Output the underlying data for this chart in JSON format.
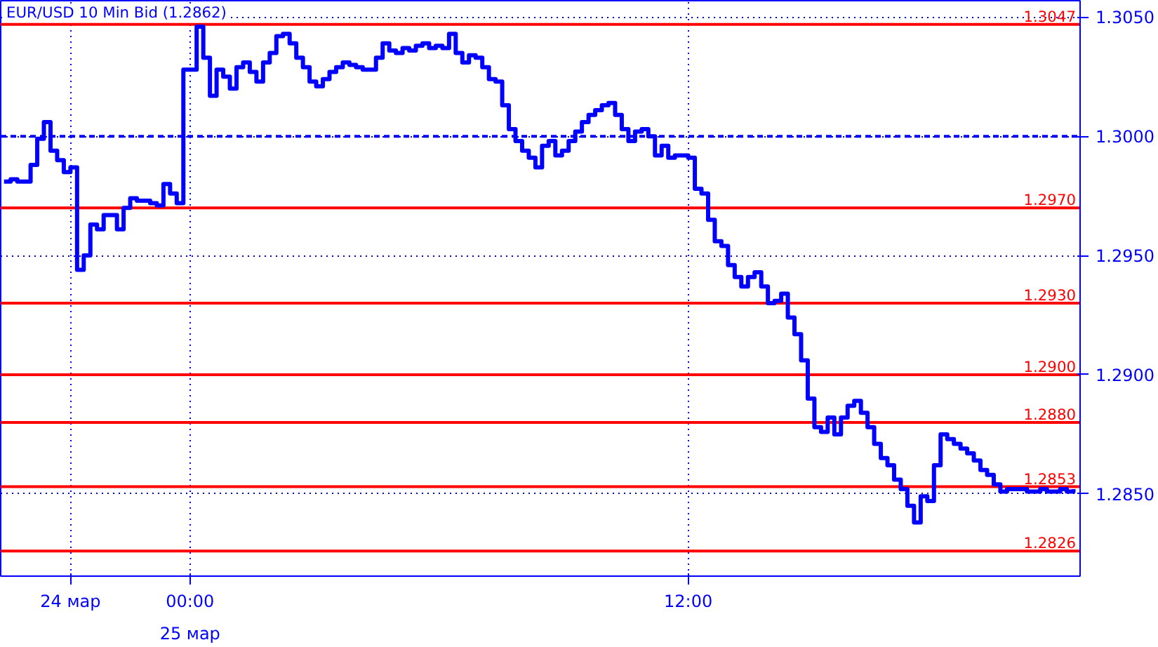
{
  "chart_data": {
    "type": "step",
    "title": "EUR/USD 10 Min Bid (1.2862)",
    "categories": [
      null,
      null,
      null,
      null,
      null,
      null,
      null,
      null,
      null,
      null,
      "24 мар",
      null,
      null,
      null,
      null,
      null,
      null,
      null,
      null,
      null,
      null,
      null,
      null,
      null,
      null,
      null,
      null,
      null,
      "00:00",
      null,
      null,
      null,
      null,
      null,
      null,
      null,
      null,
      null,
      null,
      null,
      null,
      null,
      null,
      null,
      null,
      null,
      null,
      null,
      null,
      null,
      null,
      null,
      null,
      null,
      null,
      null,
      null,
      null,
      null,
      null,
      null,
      null,
      null,
      null,
      null,
      null,
      null,
      null,
      null,
      null,
      null,
      null,
      null,
      null,
      null,
      null,
      null,
      null,
      null,
      null,
      null,
      null,
      null,
      null,
      null,
      null,
      null,
      null,
      null,
      null,
      null,
      null,
      null,
      null,
      null,
      null,
      null,
      null,
      null,
      null,
      null,
      null,
      null,
      "12:00",
      null,
      null,
      null,
      null,
      null,
      null,
      null,
      null,
      null,
      null,
      null,
      null,
      null,
      null,
      null,
      null,
      null,
      null,
      null,
      null,
      null,
      null,
      null,
      null,
      null,
      null,
      null,
      null,
      null,
      null,
      null,
      null,
      null,
      null,
      null,
      null,
      null,
      null,
      null,
      null,
      null,
      null,
      null,
      null,
      null,
      null,
      null,
      null,
      null,
      null,
      null,
      null,
      null,
      null,
      null,
      null,
      null,
      null
    ],
    "values": [
      1.2981,
      1.2982,
      1.2981,
      1.2981,
      1.2988,
      1.2999,
      1.3006,
      1.2994,
      1.299,
      1.2985,
      1.2987,
      1.2944,
      1.295,
      1.2963,
      1.2961,
      1.2967,
      1.2967,
      1.2961,
      1.297,
      1.2974,
      1.2973,
      1.2973,
      1.2972,
      1.2971,
      1.298,
      1.2976,
      1.2972,
      1.3028,
      1.3028,
      1.3046,
      1.3033,
      1.3017,
      1.3028,
      1.3025,
      1.302,
      1.3029,
      1.3031,
      1.3027,
      1.3023,
      1.3031,
      1.3035,
      1.3042,
      1.3043,
      1.3039,
      1.3033,
      1.3029,
      1.3023,
      1.3021,
      1.3024,
      1.3027,
      1.3029,
      1.3031,
      1.303,
      1.3029,
      1.3028,
      1.3028,
      1.3033,
      1.3039,
      1.3036,
      1.3035,
      1.3037,
      1.3036,
      1.3038,
      1.3039,
      1.3037,
      1.3038,
      1.3037,
      1.3043,
      1.3035,
      1.3031,
      1.3034,
      1.3033,
      1.3029,
      1.3024,
      1.3023,
      1.3013,
      1.3003,
      1.2998,
      1.2994,
      1.2991,
      1.2987,
      1.2996,
      1.2998,
      1.2992,
      1.2994,
      1.2998,
      1.3002,
      1.3006,
      1.3009,
      1.3011,
      1.3013,
      1.3014,
      1.3009,
      1.3003,
      1.2998,
      1.3002,
      1.3003,
      1.3,
      1.2992,
      1.2996,
      1.2991,
      1.2992,
      1.2992,
      1.2991,
      1.2978,
      1.2976,
      1.2965,
      1.2956,
      1.2954,
      1.2946,
      1.2941,
      1.2937,
      1.2941,
      1.2943,
      1.2937,
      1.293,
      1.2931,
      1.2934,
      1.2924,
      1.2917,
      1.2906,
      1.289,
      1.2878,
      1.2876,
      1.2882,
      1.2875,
      1.2882,
      1.2887,
      1.2889,
      1.2884,
      1.2878,
      1.2871,
      1.2865,
      1.2862,
      1.2856,
      1.2852,
      1.2845,
      1.2838,
      1.2849,
      1.2847,
      1.2862,
      1.2875,
      1.2873,
      1.2871,
      1.2869,
      1.2867,
      1.2864,
      1.286,
      1.2858,
      1.2854,
      1.2851,
      1.2852,
      1.2852,
      1.2852,
      1.2851,
      1.2851,
      1.2852,
      1.2851,
      1.2851,
      1.2852,
      1.2851,
      1.2852
    ],
    "color": "#0000ff",
    "ylim": [
      1.28155,
      1.30569
    ],
    "yticks": [
      {
        "value": 1.305,
        "label": "1.3050"
      },
      {
        "value": 1.3,
        "label": "1.3000"
      },
      {
        "value": 1.295,
        "label": "1.2950"
      },
      {
        "value": 1.29,
        "label": "1.2900"
      },
      {
        "value": 1.285,
        "label": "1.2850"
      }
    ],
    "grid": true,
    "annotations": [
      "25 мар"
    ],
    "ref_lines": [
      {
        "axis": "y",
        "value": 1.3047,
        "label": "1.3047",
        "color": "#ff0000"
      },
      {
        "axis": "y",
        "value": 1.3,
        "label": null,
        "color": "#0000ff",
        "line_style": "dashed"
      },
      {
        "axis": "y",
        "value": 1.297,
        "label": "1.2970",
        "color": "#ff0000"
      },
      {
        "axis": "y",
        "value": 1.293,
        "label": "1.2930",
        "color": "#ff0000"
      },
      {
        "axis": "y",
        "value": 1.29,
        "label": "1.2900",
        "color": "#ff0000"
      },
      {
        "axis": "y",
        "value": 1.288,
        "label": "1.2880",
        "color": "#ff0000"
      },
      {
        "axis": "y",
        "value": 1.2853,
        "label": "1.2853",
        "color": "#ff0000"
      },
      {
        "axis": "y",
        "value": 1.2826,
        "label": "1.2826",
        "color": "#ff0000"
      }
    ]
  }
}
